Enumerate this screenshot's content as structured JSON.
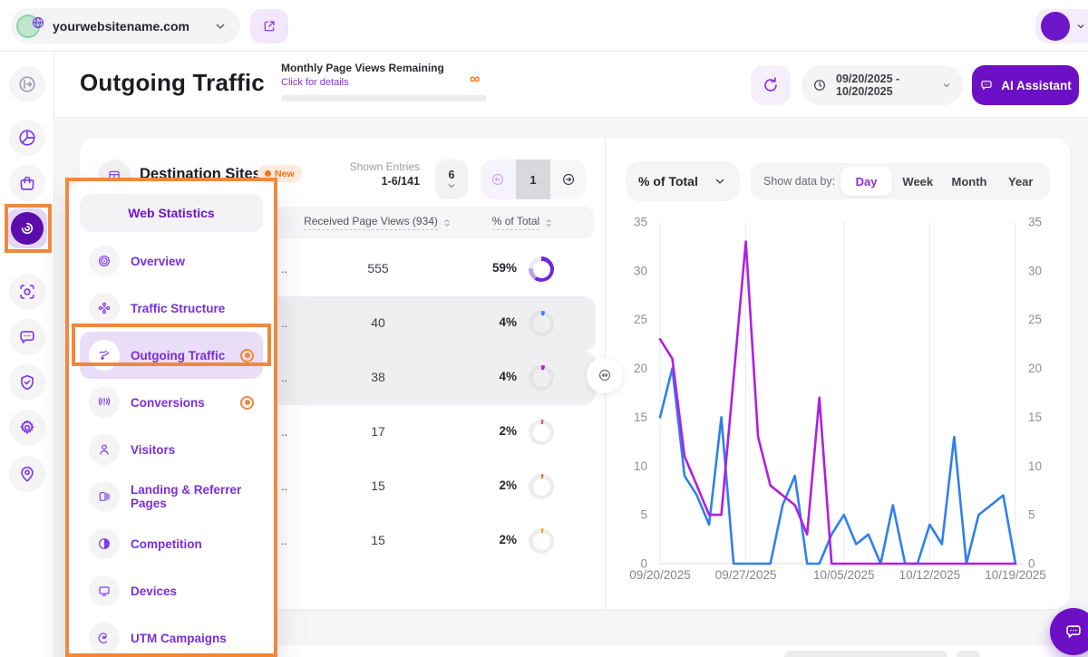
{
  "topbar": {
    "website": "yourwebsitename.com"
  },
  "sidebar": {
    "items": [
      {
        "icon": "circle-arrow-right",
        "gray": true
      },
      {
        "icon": "pie-chart"
      },
      {
        "icon": "shopping-bag"
      },
      {
        "icon": "radar",
        "active": true
      },
      {
        "icon": "focus-target"
      },
      {
        "icon": "chat-bubble"
      },
      {
        "icon": "shield-check"
      },
      {
        "icon": "gear"
      },
      {
        "icon": "map-pin"
      }
    ]
  },
  "header": {
    "title": "Outgoing Traffic",
    "mpv": {
      "label": "Monthly Page Views Remaining",
      "link": "Click for details",
      "infinity": "∞"
    },
    "date_range": "09/20/2025 - 10/20/2025",
    "ai_label": "AI Assistant"
  },
  "menu": {
    "title": "Web Statistics",
    "items": [
      {
        "label": "Overview",
        "icon": "overview"
      },
      {
        "label": "Traffic Structure",
        "icon": "nodes"
      },
      {
        "label": "Outgoing Traffic",
        "icon": "route",
        "active": true,
        "marked": true
      },
      {
        "label": "Conversions",
        "icon": "announce",
        "marked": true
      },
      {
        "label": "Visitors",
        "icon": "person"
      },
      {
        "label": "Landing & Referrer Pages",
        "icon": "pages"
      },
      {
        "label": "Competition",
        "icon": "contrast"
      },
      {
        "label": "Devices",
        "icon": "monitor"
      },
      {
        "label": "UTM Campaigns",
        "icon": "spiral"
      }
    ]
  },
  "table": {
    "title": "Destination Sites",
    "badge": "New",
    "shown_label": "Shown Entries",
    "shown_value": "1-6/141",
    "page_size": "6",
    "page": "1",
    "col_views": "Received Page Views (934)",
    "col_pct": "% of Total",
    "rows": [
      {
        "name": "..",
        "views": "555",
        "pct": "59%",
        "highlight": false,
        "donut": {
          "stops": [
            [
              "#6d28d9",
              0,
              59
            ],
            [
              "#b9a0ee",
              59,
              76
            ],
            [
              "#efeaf9",
              76,
              100
            ]
          ]
        }
      },
      {
        "name": "..",
        "views": "40",
        "pct": "4%",
        "highlight": true,
        "donut": {
          "stops": [
            [
              "#3b82f6",
              0,
              5
            ],
            [
              "#e4e4e7",
              5,
              100
            ]
          ]
        }
      },
      {
        "name": "..",
        "views": "38",
        "pct": "4%",
        "highlight": true,
        "donut": {
          "stops": [
            [
              "#b01fe3",
              0,
              5
            ],
            [
              "#e4e4e7",
              5,
              100
            ]
          ]
        }
      },
      {
        "name": "..",
        "views": "17",
        "pct": "2%",
        "highlight": false,
        "donut": {
          "stops": [
            [
              "#ec4899",
              0,
              3
            ],
            [
              "#ededee",
              3,
              100
            ]
          ]
        }
      },
      {
        "name": "..",
        "views": "15",
        "pct": "2%",
        "highlight": false,
        "donut": {
          "stops": [
            [
              "#f97316",
              0,
              3
            ],
            [
              "#ededee",
              3,
              100
            ]
          ]
        }
      },
      {
        "name": "..",
        "views": "15",
        "pct": "2%",
        "highlight": false,
        "donut": {
          "stops": [
            [
              "#f5a623",
              0,
              3
            ],
            [
              "#ededee",
              3,
              100
            ]
          ]
        }
      }
    ]
  },
  "chart": {
    "metric": "% of Total",
    "show_by_label": "Show data by:",
    "periods": [
      "Day",
      "Week",
      "Month",
      "Year"
    ],
    "active_period": "Day"
  },
  "chart_data": {
    "type": "line",
    "x_unit": "day",
    "x_start": "09/20/2025",
    "x_end": "10/19/2025",
    "x_tick_labels": [
      "09/20/2025",
      "09/27/2025",
      "10/05/2025",
      "10/12/2025",
      "10/19/2025"
    ],
    "x_tick_day_indices": [
      0,
      7,
      15,
      22,
      29
    ],
    "ylabel": "% of Total",
    "ylim": [
      0,
      35
    ],
    "y_ticks": [
      0,
      5,
      10,
      15,
      20,
      25,
      30,
      35
    ],
    "grid": "vertical-only",
    "legend": "none",
    "series": [
      {
        "name": "destination-site-blue",
        "color": "#2f80ed",
        "values": [
          15,
          20,
          9,
          7,
          4,
          15,
          0,
          0,
          0,
          0,
          6,
          9,
          0,
          0,
          3,
          5,
          2,
          3,
          0,
          6,
          0,
          0,
          4,
          2,
          13,
          0,
          5,
          6,
          7,
          0
        ]
      },
      {
        "name": "destination-site-magenta",
        "color": "#b01fe3",
        "values": [
          23,
          21,
          11,
          8,
          5,
          5,
          19,
          33,
          13,
          8,
          7,
          6,
          3,
          17,
          0,
          0,
          0,
          0,
          0,
          0,
          0,
          0,
          0,
          0,
          0,
          0,
          0,
          0,
          0,
          0
        ]
      }
    ]
  }
}
